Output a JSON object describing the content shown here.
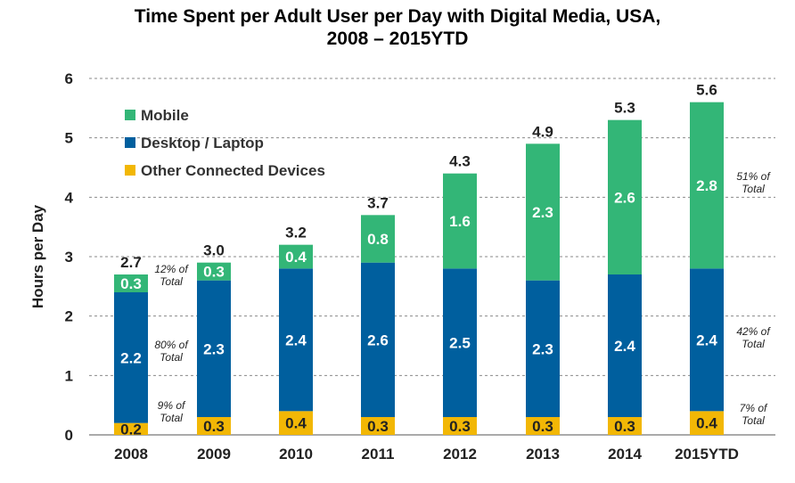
{
  "chart_data": {
    "type": "bar",
    "stacked": true,
    "title": "Time Spent per Adult User per Day with Digital Media, USA,",
    "title_line2": "2008 – 2015YTD",
    "ylabel": "Hours per Day",
    "xlabel": "",
    "ylim": [
      0,
      6
    ],
    "yticks": [
      "0",
      "1",
      "2",
      "3",
      "4",
      "5",
      "6"
    ],
    "grid": "dashed horizontal",
    "legend_placement": "top-left",
    "categories": [
      "2008",
      "2009",
      "2010",
      "2011",
      "2012",
      "2013",
      "2014",
      "2015YTD"
    ],
    "series": [
      {
        "name": "Other Connected Devices",
        "color": "#f2b705",
        "values": [
          0.2,
          0.3,
          0.4,
          0.3,
          0.3,
          0.3,
          0.3,
          0.4
        ],
        "labels": [
          "0.2",
          "0.3",
          "0.4",
          "0.3",
          "0.3",
          "0.3",
          "0.3",
          "0.4"
        ],
        "label_color": "#222222"
      },
      {
        "name": "Desktop / Laptop",
        "color": "#005f9e",
        "values": [
          2.2,
          2.3,
          2.4,
          2.6,
          2.5,
          2.3,
          2.4,
          2.4
        ],
        "labels": [
          "2.2",
          "2.3",
          "2.4",
          "2.6",
          "2.5",
          "2.3",
          "2.4",
          "2.4"
        ],
        "label_color": "#ffffff"
      },
      {
        "name": "Mobile",
        "color": "#33b677",
        "values": [
          0.3,
          0.3,
          0.4,
          0.8,
          1.6,
          2.3,
          2.6,
          2.8
        ],
        "labels": [
          "0.3",
          "0.3",
          "0.4",
          "0.8",
          "1.6",
          "2.3",
          "2.6",
          "2.8"
        ],
        "label_color": "#ffffff"
      }
    ],
    "totals": [
      "2.7",
      "3.0",
      "3.2",
      "3.7",
      "4.3",
      "4.9",
      "5.3",
      "5.6"
    ],
    "legend": [
      "Mobile",
      "Desktop / Laptop",
      "Other Connected Devices"
    ],
    "annotations_2008": {
      "mobile": [
        "12% of",
        "Total"
      ],
      "desktop": [
        "80% of",
        "Total"
      ],
      "other": [
        "9% of",
        "Total"
      ]
    },
    "annotations_2015": {
      "mobile": [
        "51% of",
        "Total"
      ],
      "desktop": [
        "42% of",
        "Total"
      ],
      "other": [
        "7% of",
        "Total"
      ]
    }
  }
}
